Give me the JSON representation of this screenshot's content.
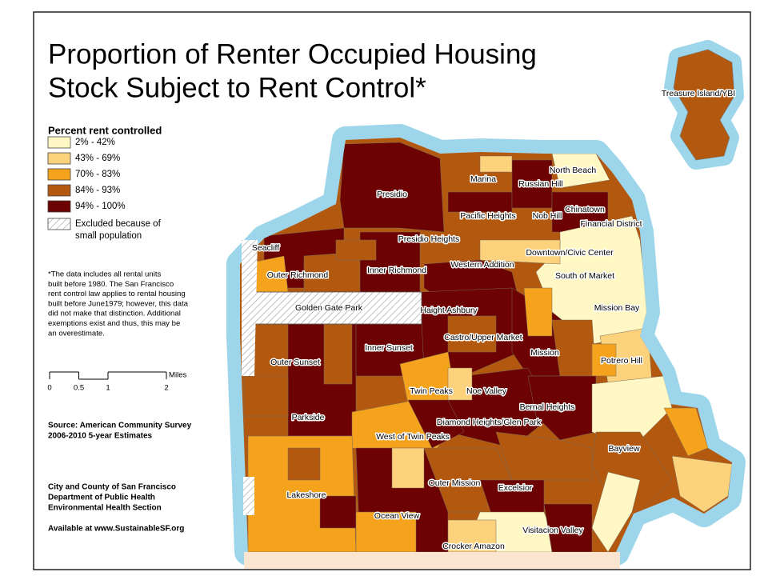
{
  "title_lines": [
    "Proportion of Renter Occupied Housing",
    "Stock Subject to Rent Control*"
  ],
  "legend": {
    "title": "Percent rent controlled",
    "items": [
      {
        "label": "2% - 42%",
        "color": "#fff8c4"
      },
      {
        "label": "43% - 69%",
        "color": "#fdd27c"
      },
      {
        "label": "70% - 83%",
        "color": "#f5a31c"
      },
      {
        "label": "84% - 93%",
        "color": "#b3590f"
      },
      {
        "label": "94% - 100%",
        "color": "#6c0202"
      }
    ],
    "excluded_lines": [
      "Excluded because of",
      "small population"
    ]
  },
  "note_lines": [
    "*The data includes all rental units",
    "built before 1980. The San Francisco",
    "rent control law applies to rental housing",
    "built before June1979; however, this data",
    "did not make that distinction. Additional",
    "exemptions exist and thus, this may be",
    "an overestimate."
  ],
  "scale": {
    "ticks": [
      0,
      0.5,
      1,
      2
    ],
    "unit": "Miles"
  },
  "source_lines": [
    "Source: American Community Survey",
    "2006-2010 5-year Estimates"
  ],
  "credit_lines": [
    "City and County of San Francisco",
    "Department of Public Health",
    "Environmental Health Section"
  ],
  "available": "Available at www.SustainableSF.org",
  "labels": [
    "Treasure Island/YBI",
    "North Beach",
    "Marina",
    "Russian Hill",
    "Presidio",
    "Chinatown",
    "Pacific Heights",
    "Nob Hill",
    "Financial District",
    "Presidio Heights",
    "Seacliff",
    "Downtown/Civic Center",
    "Western Addition",
    "Inner Richmond",
    "Outer Richmond",
    "South of Market",
    "Golden Gate Park",
    "Haight Ashbury",
    "Mission Bay",
    "Castro/Upper Market",
    "Inner Sunset",
    "Mission",
    "Potrero Hill",
    "Outer Sunset",
    "Twin Peaks",
    "Noe Valley",
    "Bernal Heights",
    "Parkside",
    "Diamond Heights/Glen Park",
    "West of Twin Peaks",
    "Bayview",
    "Outer Mission",
    "Excelsior",
    "Lakeshore",
    "Ocean View",
    "Visitacion Valley",
    "Crocker Amazon"
  ]
}
